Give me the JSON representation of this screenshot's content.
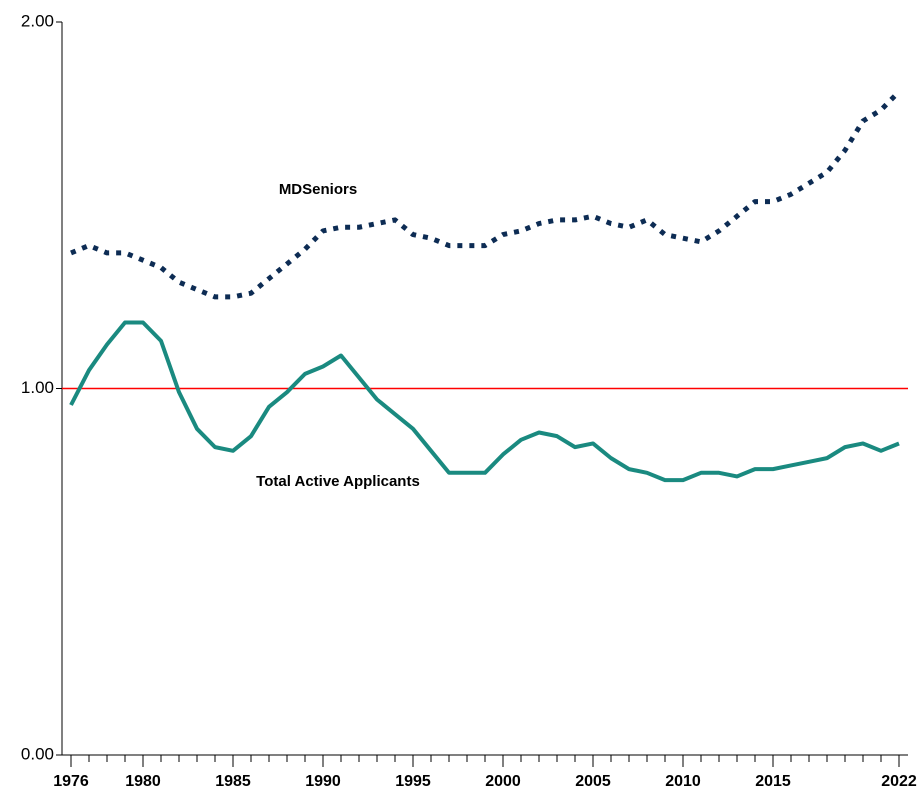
{
  "chart_data": {
    "type": "line",
    "x": [
      1976,
      1977,
      1978,
      1979,
      1980,
      1981,
      1982,
      1983,
      1984,
      1985,
      1986,
      1987,
      1988,
      1989,
      1990,
      1991,
      1992,
      1993,
      1994,
      1995,
      1996,
      1997,
      1998,
      1999,
      2000,
      2001,
      2002,
      2003,
      2004,
      2005,
      2006,
      2007,
      2008,
      2009,
      2010,
      2011,
      2012,
      2013,
      2014,
      2015,
      2016,
      2017,
      2018,
      2019,
      2020,
      2021,
      2022
    ],
    "series": [
      {
        "name": "MDSeniors",
        "color": "#0d2c54",
        "dash": "dotted",
        "values": [
          1.37,
          1.39,
          1.37,
          1.37,
          1.35,
          1.33,
          1.29,
          1.27,
          1.25,
          1.25,
          1.26,
          1.3,
          1.34,
          1.38,
          1.43,
          1.44,
          1.44,
          1.45,
          1.46,
          1.42,
          1.41,
          1.39,
          1.39,
          1.39,
          1.42,
          1.43,
          1.45,
          1.46,
          1.46,
          1.47,
          1.45,
          1.44,
          1.46,
          1.42,
          1.41,
          1.4,
          1.43,
          1.47,
          1.51,
          1.51,
          1.53,
          1.56,
          1.59,
          1.65,
          1.73,
          1.76,
          1.81
        ]
      },
      {
        "name": "Total Active Applicants",
        "color": "#1a8a80",
        "dash": "solid",
        "values": [
          0.955,
          1.05,
          1.12,
          1.18,
          1.18,
          1.13,
          0.99,
          0.89,
          0.84,
          0.83,
          0.87,
          0.95,
          0.99,
          1.04,
          1.06,
          1.09,
          1.03,
          0.97,
          0.93,
          0.89,
          0.83,
          0.77,
          0.77,
          0.77,
          0.82,
          0.86,
          0.88,
          0.87,
          0.84,
          0.85,
          0.81,
          0.78,
          0.77,
          0.75,
          0.75,
          0.77,
          0.77,
          0.76,
          0.78,
          0.78,
          0.79,
          0.8,
          0.81,
          0.84,
          0.85,
          0.83,
          0.85
        ]
      }
    ],
    "reference_line": {
      "value": 1,
      "color": "#ff0000"
    },
    "xlim": [
      1975.5,
      2022.5
    ],
    "xticks": [
      1976,
      1980,
      1985,
      1990,
      1995,
      2000,
      2005,
      2010,
      2015,
      2022
    ],
    "ylim": [
      0,
      2
    ],
    "yticks": [
      {
        "value": 0,
        "label": "0.00"
      },
      {
        "value": 1,
        "label": "1.00"
      },
      {
        "value": 2,
        "label": "2.00"
      }
    ]
  }
}
